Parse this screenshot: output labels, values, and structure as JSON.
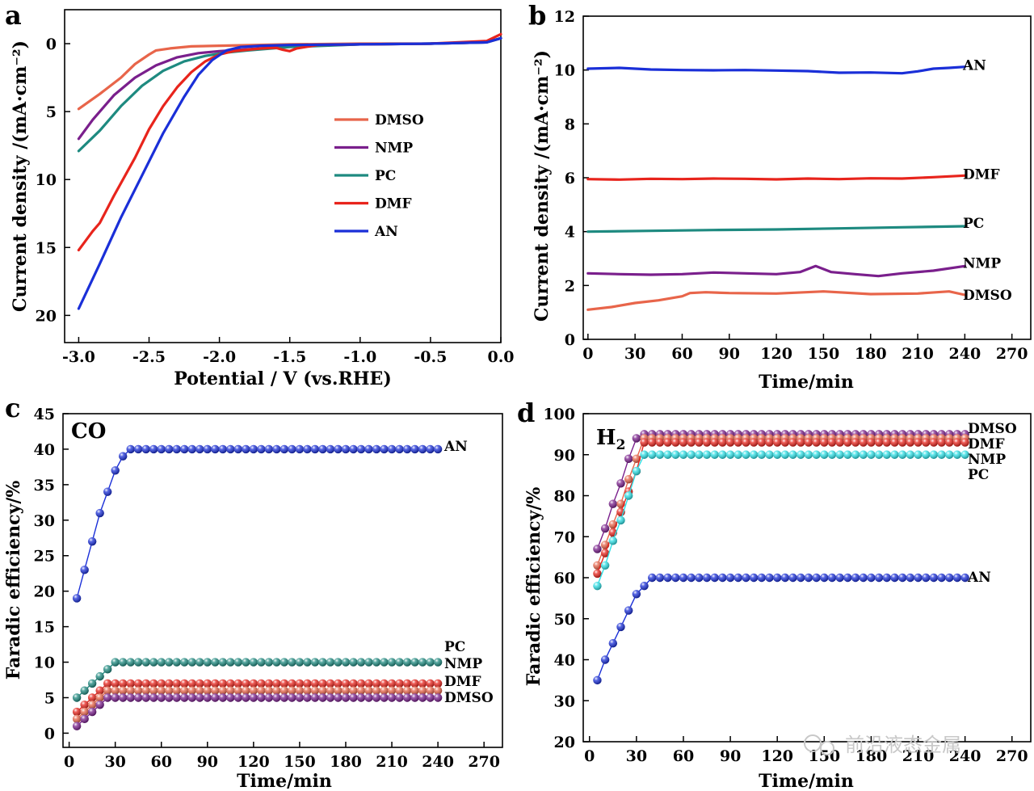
{
  "watermark": {
    "text": "前沿液态金属"
  },
  "chart_data": [
    {
      "panel": "a",
      "type": "line",
      "title": "",
      "xlabel": "Potential / V (vs.RHE)",
      "ylabel": "Current density /(mA·cm⁻²)",
      "xlim": [
        -3.1,
        0.0
      ],
      "ylim": [
        22,
        -2.5
      ],
      "xticks": [
        -3.0,
        -2.5,
        -2.0,
        -1.5,
        -1.0,
        -0.5,
        0.0
      ],
      "xtick_labels": [
        "-3.0",
        "-2.5",
        "-2.0",
        "-1.5",
        "-1.0",
        "-0.5",
        "0.0"
      ],
      "yticks": [
        0,
        5,
        10,
        15,
        20
      ],
      "ytick_labels": [
        "0",
        "5",
        "10",
        "15",
        "20"
      ],
      "legend": {
        "placement": "center-right",
        "labels": [
          "DMSO",
          "NMP",
          "PC",
          "DMF",
          "AN"
        ]
      },
      "series": [
        {
          "name": "DMSO",
          "color": "#e8654a",
          "x": [
            -3.0,
            -2.85,
            -2.7,
            -2.6,
            -2.5,
            -2.45,
            -2.35,
            -2.2,
            -2.0,
            -1.5,
            -1.0,
            -0.5,
            -0.1,
            0.0
          ],
          "y": [
            4.8,
            3.7,
            2.5,
            1.5,
            0.8,
            0.5,
            0.35,
            0.2,
            0.15,
            0.05,
            0.0,
            0.0,
            -0.1,
            -0.4
          ]
        },
        {
          "name": "NMP",
          "color": "#7a1f8c",
          "x": [
            -3.0,
            -2.9,
            -2.75,
            -2.6,
            -2.45,
            -2.3,
            -2.15,
            -2.0,
            -1.85,
            -1.5,
            -1.0,
            -0.5,
            -0.1,
            0.0
          ],
          "y": [
            7.0,
            5.6,
            3.8,
            2.5,
            1.6,
            1.0,
            0.7,
            0.55,
            0.45,
            0.2,
            0.05,
            0.0,
            -0.1,
            -0.4
          ]
        },
        {
          "name": "PC",
          "color": "#1e8a80",
          "x": [
            -3.0,
            -2.85,
            -2.7,
            -2.55,
            -2.4,
            -2.25,
            -2.1,
            -1.95,
            -1.8,
            -1.5,
            -1.0,
            -0.5,
            -0.1,
            0.0
          ],
          "y": [
            7.9,
            6.4,
            4.6,
            3.1,
            2.0,
            1.3,
            0.9,
            0.65,
            0.5,
            0.25,
            0.05,
            0.0,
            -0.1,
            -0.4
          ]
        },
        {
          "name": "DMF",
          "color": "#e8241c",
          "x": [
            -3.0,
            -2.9,
            -2.85,
            -2.75,
            -2.6,
            -2.5,
            -2.4,
            -2.3,
            -2.2,
            -2.1,
            -2.0,
            -1.9,
            -1.7,
            -1.6,
            -1.55,
            -1.5,
            -1.45,
            -1.3,
            -1.0,
            -0.5,
            -0.1,
            0.0
          ],
          "y": [
            15.2,
            13.8,
            13.2,
            11.2,
            8.4,
            6.3,
            4.6,
            3.2,
            2.1,
            1.3,
            0.8,
            0.55,
            0.35,
            0.3,
            0.45,
            0.55,
            0.35,
            0.1,
            0.05,
            0.0,
            -0.2,
            -0.7
          ]
        },
        {
          "name": "AN",
          "color": "#1a2fd8",
          "x": [
            -3.0,
            -2.85,
            -2.7,
            -2.55,
            -2.4,
            -2.25,
            -2.15,
            -2.05,
            -1.95,
            -1.85,
            -1.7,
            -1.5,
            -1.0,
            -0.5,
            -0.1,
            0.0
          ],
          "y": [
            19.5,
            16.2,
            12.8,
            9.7,
            6.6,
            3.9,
            2.3,
            1.2,
            0.5,
            0.25,
            0.15,
            0.1,
            0.05,
            0.0,
            -0.1,
            -0.4
          ]
        }
      ]
    },
    {
      "panel": "b",
      "type": "line",
      "title": "",
      "xlabel": "Time/min",
      "ylabel": "Current density /(mA·cm⁻²)",
      "xlim": [
        -3,
        282
      ],
      "ylim": [
        0,
        12
      ],
      "xticks": [
        0,
        30,
        60,
        90,
        120,
        150,
        180,
        210,
        240,
        270
      ],
      "xtick_labels": [
        "0",
        "30",
        "60",
        "90",
        "120",
        "150",
        "180",
        "210",
        "240",
        "270"
      ],
      "yticks": [
        0,
        2,
        4,
        6,
        8,
        10,
        12
      ],
      "ytick_labels": [
        "0",
        "2",
        "4",
        "6",
        "8",
        "10",
        "12"
      ],
      "series": [
        {
          "name": "AN",
          "color": "#1a2fd8",
          "x": [
            0,
            20,
            40,
            60,
            80,
            100,
            120,
            140,
            160,
            180,
            200,
            210,
            220,
            230,
            240
          ],
          "y": [
            10.05,
            10.08,
            10.02,
            10.0,
            9.99,
            10.0,
            9.98,
            9.96,
            9.9,
            9.91,
            9.88,
            9.95,
            10.05,
            10.08,
            10.12
          ]
        },
        {
          "name": "DMF",
          "color": "#e8241c",
          "x": [
            0,
            20,
            40,
            60,
            80,
            100,
            120,
            140,
            160,
            180,
            200,
            220,
            240
          ],
          "y": [
            5.95,
            5.93,
            5.96,
            5.95,
            5.97,
            5.96,
            5.94,
            5.97,
            5.95,
            5.98,
            5.97,
            6.02,
            6.08
          ]
        },
        {
          "name": "PC",
          "color": "#1e8a80",
          "x": [
            0,
            40,
            80,
            120,
            160,
            200,
            240
          ],
          "y": [
            4.0,
            4.03,
            4.06,
            4.08,
            4.12,
            4.16,
            4.2
          ]
        },
        {
          "name": "NMP",
          "color": "#7a1f8c",
          "x": [
            0,
            20,
            40,
            60,
            80,
            100,
            120,
            135,
            145,
            155,
            170,
            185,
            200,
            220,
            240
          ],
          "y": [
            2.45,
            2.42,
            2.4,
            2.42,
            2.48,
            2.45,
            2.42,
            2.5,
            2.72,
            2.5,
            2.42,
            2.35,
            2.45,
            2.55,
            2.72
          ]
        },
        {
          "name": "DMSO",
          "color": "#e8654a",
          "x": [
            0,
            15,
            30,
            45,
            60,
            65,
            75,
            90,
            120,
            150,
            180,
            210,
            230,
            240
          ],
          "y": [
            1.1,
            1.2,
            1.35,
            1.45,
            1.6,
            1.72,
            1.75,
            1.72,
            1.7,
            1.78,
            1.68,
            1.7,
            1.78,
            1.65
          ]
        }
      ],
      "annotations": [
        "AN",
        "DMF",
        "PC",
        "NMP",
        "DMSO"
      ]
    },
    {
      "panel": "c",
      "type": "scatter",
      "title": "CO",
      "xlabel": "Time/min",
      "ylabel": "Faradic efficiency/%",
      "xlim": [
        -4,
        282
      ],
      "ylim": [
        -2,
        45
      ],
      "xticks": [
        0,
        30,
        60,
        90,
        120,
        150,
        180,
        210,
        240,
        270
      ],
      "xtick_labels": [
        "0",
        "30",
        "60",
        "90",
        "120",
        "150",
        "180",
        "210",
        "240",
        "270"
      ],
      "yticks": [
        0,
        5,
        10,
        15,
        20,
        25,
        30,
        35,
        40,
        45
      ],
      "ytick_labels": [
        "0",
        "5",
        "10",
        "15",
        "20",
        "25",
        "30",
        "35",
        "40",
        "45"
      ],
      "series": [
        {
          "name": "AN",
          "color": "#1a2fd8",
          "x": [
            5,
            10,
            15,
            20,
            25,
            30,
            35,
            40
          ],
          "y": [
            19,
            23,
            27,
            31,
            34,
            37,
            39,
            40
          ],
          "plateau": 40
        },
        {
          "name": "PC",
          "color": "#1e8a80",
          "x": [
            5,
            10,
            15,
            20,
            25,
            30,
            35
          ],
          "y": [
            5,
            6,
            7,
            8,
            9,
            10,
            10
          ],
          "plateau": 10
        },
        {
          "name": "NMP",
          "color": "#e8241c",
          "x": [
            5,
            10,
            15,
            20,
            25,
            30,
            35
          ],
          "y": [
            3,
            4,
            5,
            6,
            7,
            7,
            7
          ],
          "plateau": 7
        },
        {
          "name": "DMF",
          "color": "#e8654a",
          "x": [
            5,
            10,
            15,
            20,
            25,
            30,
            35
          ],
          "y": [
            2,
            3,
            4,
            5,
            6,
            6,
            6
          ],
          "plateau": 6
        },
        {
          "name": "DMSO",
          "color": "#7a1f8c",
          "x": [
            5,
            10,
            15,
            20,
            25,
            30,
            35
          ],
          "y": [
            1,
            2,
            3,
            4,
            5,
            5,
            5
          ],
          "plateau": 5
        }
      ],
      "plateau_end": 240,
      "annotations": [
        "AN",
        "PC",
        "NMP",
        "DMF",
        "DMSO"
      ]
    },
    {
      "panel": "d",
      "type": "scatter",
      "title": "H2",
      "xlabel": "Time/min",
      "ylabel": "Faradic efficiency/%",
      "xlim": [
        -4,
        282
      ],
      "ylim": [
        20,
        100
      ],
      "xticks": [
        0,
        30,
        60,
        90,
        120,
        150,
        180,
        210,
        240,
        270
      ],
      "xtick_labels": [
        "0",
        "30",
        "60",
        "90",
        "120",
        "150",
        "180",
        "210",
        "240",
        "270"
      ],
      "yticks": [
        20,
        30,
        40,
        50,
        60,
        70,
        80,
        90,
        100
      ],
      "ytick_labels": [
        "20",
        "30",
        "40",
        "50",
        "60",
        "70",
        "80",
        "90",
        "100"
      ],
      "series": [
        {
          "name": "DMSO",
          "color": "#7a1f8c",
          "x": [
            5,
            10,
            15,
            20,
            25,
            30,
            35,
            40
          ],
          "y": [
            67,
            72,
            78,
            83,
            89,
            94,
            95,
            95
          ],
          "plateau": 95
        },
        {
          "name": "DMF",
          "color": "#e8654a",
          "x": [
            5,
            10,
            15,
            20,
            25,
            30,
            35,
            40
          ],
          "y": [
            63,
            68,
            73,
            78,
            84,
            89,
            94,
            94
          ],
          "plateau": 94
        },
        {
          "name": "NMP",
          "color": "#e8241c",
          "x": [
            5,
            10,
            15,
            20,
            25,
            30,
            35,
            40
          ],
          "y": [
            61,
            66,
            71,
            76,
            81,
            86,
            93,
            93
          ],
          "plateau": 93
        },
        {
          "name": "PC",
          "color": "#2ee0e6",
          "x": [
            5,
            10,
            15,
            20,
            25,
            30,
            35,
            40
          ],
          "y": [
            58,
            63,
            69,
            74,
            80,
            86,
            90,
            90
          ],
          "plateau": 90
        },
        {
          "name": "AN",
          "color": "#1a2fd8",
          "x": [
            5,
            10,
            15,
            20,
            25,
            30,
            35,
            40,
            45
          ],
          "y": [
            35,
            40,
            44,
            48,
            52,
            56,
            58,
            60,
            60
          ],
          "plateau": 60
        }
      ],
      "plateau_end": 240,
      "annotations": [
        "DMSO",
        "DMF",
        "NMP",
        "PC",
        "AN"
      ]
    }
  ]
}
